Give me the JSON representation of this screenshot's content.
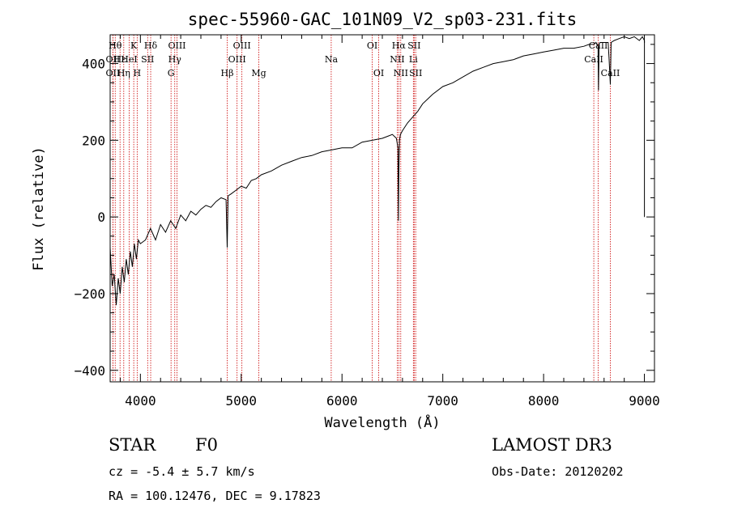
{
  "chart_data": {
    "type": "line",
    "title": "spec-55960-GAC_101N09_V2_sp03-231.fits",
    "xlabel": "Wavelength (Å)",
    "ylabel": "Flux (relative)",
    "xlim": [
      3700,
      9100
    ],
    "ylim": [
      -430,
      475
    ],
    "x_ticks": [
      4000,
      5000,
      6000,
      7000,
      8000,
      9000
    ],
    "y_ticks": [
      -400,
      -200,
      0,
      200,
      400
    ],
    "series": [
      {
        "name": "flux",
        "x": [
          3700,
          3720,
          3740,
          3760,
          3780,
          3800,
          3820,
          3840,
          3860,
          3880,
          3900,
          3920,
          3940,
          3960,
          3980,
          4000,
          4050,
          4100,
          4150,
          4200,
          4250,
          4300,
          4350,
          4400,
          4450,
          4500,
          4550,
          4600,
          4650,
          4700,
          4750,
          4800,
          4850,
          4861,
          4870,
          4900,
          4950,
          5000,
          5050,
          5100,
          5150,
          5200,
          5300,
          5400,
          5500,
          5600,
          5700,
          5800,
          5900,
          6000,
          6100,
          6200,
          6300,
          6400,
          6450,
          6500,
          6540,
          6555,
          6560,
          6563,
          6566,
          6570,
          6580,
          6600,
          6650,
          6700,
          6750,
          6800,
          6900,
          7000,
          7100,
          7200,
          7300,
          7400,
          7500,
          7600,
          7700,
          7800,
          7900,
          8000,
          8100,
          8200,
          8300,
          8400,
          8450,
          8500,
          8520,
          8540,
          8545,
          8550,
          8560,
          8600,
          8640,
          8650,
          8662,
          8670,
          8700,
          8750,
          8800,
          8850,
          8900,
          8950,
          8980,
          8990,
          9000,
          9000
        ],
        "y": [
          -80,
          -180,
          -150,
          -230,
          -160,
          -200,
          -130,
          -170,
          -110,
          -150,
          -90,
          -130,
          -70,
          -110,
          -60,
          -70,
          -60,
          -30,
          -60,
          -20,
          -40,
          -10,
          -30,
          5,
          -10,
          15,
          5,
          20,
          30,
          25,
          40,
          50,
          45,
          -80,
          55,
          60,
          70,
          80,
          75,
          95,
          100,
          110,
          120,
          135,
          145,
          155,
          160,
          170,
          175,
          180,
          180,
          195,
          200,
          205,
          210,
          215,
          205,
          180,
          -10,
          100,
          150,
          200,
          215,
          225,
          245,
          260,
          275,
          295,
          320,
          340,
          350,
          365,
          380,
          390,
          400,
          405,
          410,
          420,
          425,
          430,
          435,
          440,
          440,
          445,
          450,
          450,
          455,
          445,
          330,
          450,
          455,
          455,
          455,
          410,
          345,
          455,
          460,
          465,
          470,
          465,
          470,
          460,
          470,
          465,
          460,
          0
        ]
      }
    ],
    "line_markers": [
      {
        "wavelength": 3750,
        "row": 0,
        "label": "Hθ"
      },
      {
        "wavelength": 3727,
        "row": 1,
        "label": "OII"
      },
      {
        "wavelength": 3727,
        "row": 2,
        "label": "OII"
      },
      {
        "wavelength": 3798,
        "row": 1,
        "label": "Hε"
      },
      {
        "wavelength": 3835,
        "row": 2,
        "label": "Hη"
      },
      {
        "wavelength": 3889,
        "row": 1,
        "label": "HeI"
      },
      {
        "wavelength": 3934,
        "row": 0,
        "label": "K"
      },
      {
        "wavelength": 3968,
        "row": 2,
        "label": "H"
      },
      {
        "wavelength": 4072,
        "row": 1,
        "label": "SII"
      },
      {
        "wavelength": 4102,
        "row": 0,
        "label": "Hδ"
      },
      {
        "wavelength": 4304,
        "row": 2,
        "label": "G"
      },
      {
        "wavelength": 4341,
        "row": 1,
        "label": "Hγ"
      },
      {
        "wavelength": 4363,
        "row": 0,
        "label": "OIII"
      },
      {
        "wavelength": 4861,
        "row": 2,
        "label": "Hβ"
      },
      {
        "wavelength": 4959,
        "row": 1,
        "label": "OIII"
      },
      {
        "wavelength": 5007,
        "row": 0,
        "label": "OIII"
      },
      {
        "wavelength": 5175,
        "row": 2,
        "label": "Mg"
      },
      {
        "wavelength": 5893,
        "row": 1,
        "label": "Na"
      },
      {
        "wavelength": 6300,
        "row": 0,
        "label": "OI"
      },
      {
        "wavelength": 6364,
        "row": 2,
        "label": "OI"
      },
      {
        "wavelength": 6548,
        "row": 1,
        "label": "NII"
      },
      {
        "wavelength": 6563,
        "row": 0,
        "label": "Hα"
      },
      {
        "wavelength": 6583,
        "row": 2,
        "label": "NII"
      },
      {
        "wavelength": 6708,
        "row": 1,
        "label": "Li"
      },
      {
        "wavelength": 6716,
        "row": 0,
        "label": "SII"
      },
      {
        "wavelength": 6731,
        "row": 2,
        "label": "SII"
      },
      {
        "wavelength": 8498,
        "row": 1,
        "label": "CaII"
      },
      {
        "wavelength": 8542,
        "row": 0,
        "label": "CaII"
      },
      {
        "wavelength": 8662,
        "row": 2,
        "label": "CaII"
      }
    ],
    "marker_color": "#cc0000"
  },
  "info": {
    "class": "STAR",
    "subclass": "F0",
    "survey": "LAMOST DR3",
    "cz": "cz = -5.4 ± 5.7 km/s",
    "obs_date": "Obs-Date: 20120202",
    "coords": "RA = 100.12476, DEC =   9.17823"
  }
}
